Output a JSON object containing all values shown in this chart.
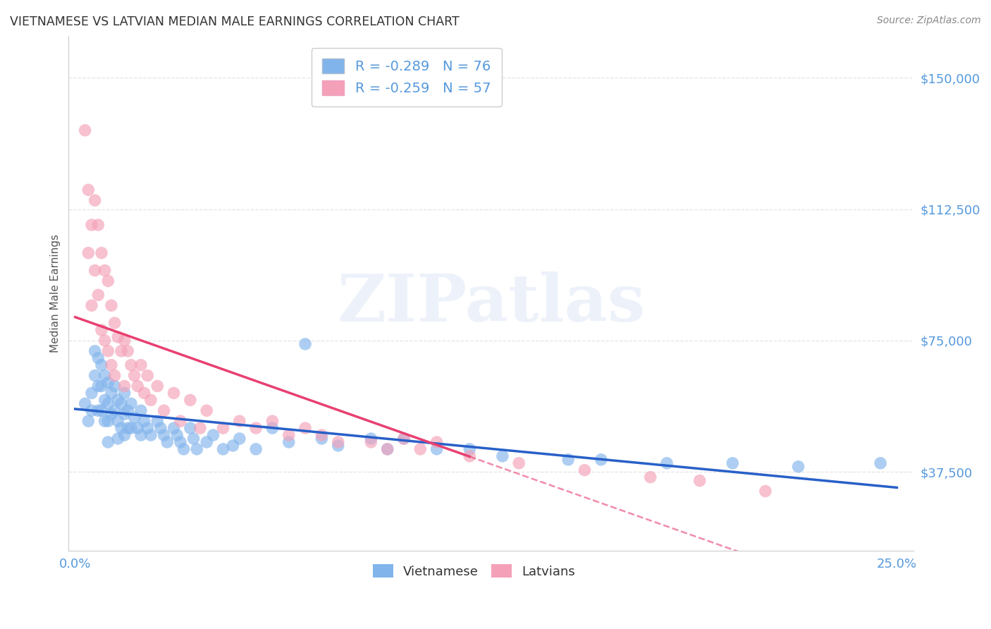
{
  "title": "VIETNAMESE VS LATVIAN MEDIAN MALE EARNINGS CORRELATION CHART",
  "source": "Source: ZipAtlas.com",
  "ylabel": "Median Male Earnings",
  "watermark": "ZIPatlas",
  "xlim": [
    -0.002,
    0.255
  ],
  "ylim": [
    15000,
    162000
  ],
  "xticks": [
    0.0,
    0.05,
    0.1,
    0.15,
    0.2,
    0.25
  ],
  "xticklabels": [
    "0.0%",
    "",
    "",
    "",
    "",
    "25.0%"
  ],
  "ytick_values": [
    37500,
    75000,
    112500,
    150000
  ],
  "ytick_labels": [
    "$37,500",
    "$75,000",
    "$112,500",
    "$150,000"
  ],
  "legend_viet": "R = -0.289   N = 76",
  "legend_latv": "R = -0.259   N = 57",
  "viet_color": "#82B4EC",
  "latv_color": "#F4A0B8",
  "viet_line_color": "#2860C8",
  "latv_line_color": "#E84070",
  "background_color": "#FFFFFF",
  "grid_color": "#DDDDDD",
  "title_color": "#333333",
  "axis_label_color": "#5599DD",
  "ylabel_color": "#555555",
  "viet_line_style": "solid",
  "latv_line_style": "solid",
  "latv_line_dashed_beyond": 0.12,
  "vietnamese_scatter": {
    "x": [
      0.003,
      0.004,
      0.005,
      0.005,
      0.006,
      0.006,
      0.007,
      0.007,
      0.007,
      0.008,
      0.008,
      0.008,
      0.009,
      0.009,
      0.009,
      0.01,
      0.01,
      0.01,
      0.01,
      0.011,
      0.011,
      0.012,
      0.012,
      0.013,
      0.013,
      0.013,
      0.014,
      0.014,
      0.015,
      0.015,
      0.015,
      0.016,
      0.016,
      0.017,
      0.017,
      0.018,
      0.019,
      0.02,
      0.02,
      0.021,
      0.022,
      0.023,
      0.025,
      0.026,
      0.027,
      0.028,
      0.03,
      0.031,
      0.032,
      0.033,
      0.035,
      0.036,
      0.037,
      0.04,
      0.042,
      0.045,
      0.048,
      0.05,
      0.055,
      0.06,
      0.065,
      0.07,
      0.075,
      0.08,
      0.09,
      0.095,
      0.1,
      0.11,
      0.12,
      0.13,
      0.15,
      0.16,
      0.18,
      0.2,
      0.22,
      0.245
    ],
    "y": [
      57000,
      52000,
      60000,
      55000,
      72000,
      65000,
      70000,
      62000,
      55000,
      68000,
      62000,
      55000,
      65000,
      58000,
      52000,
      63000,
      57000,
      52000,
      46000,
      60000,
      54000,
      62000,
      55000,
      58000,
      52000,
      47000,
      57000,
      50000,
      60000,
      54000,
      48000,
      55000,
      50000,
      57000,
      50000,
      53000,
      50000,
      55000,
      48000,
      52000,
      50000,
      48000,
      52000,
      50000,
      48000,
      46000,
      50000,
      48000,
      46000,
      44000,
      50000,
      47000,
      44000,
      46000,
      48000,
      44000,
      45000,
      47000,
      44000,
      50000,
      46000,
      74000,
      47000,
      45000,
      47000,
      44000,
      47000,
      44000,
      44000,
      42000,
      41000,
      41000,
      40000,
      40000,
      39000,
      40000
    ]
  },
  "latvian_scatter": {
    "x": [
      0.003,
      0.004,
      0.004,
      0.005,
      0.005,
      0.006,
      0.006,
      0.007,
      0.007,
      0.008,
      0.008,
      0.009,
      0.009,
      0.01,
      0.01,
      0.011,
      0.011,
      0.012,
      0.012,
      0.013,
      0.014,
      0.015,
      0.015,
      0.016,
      0.017,
      0.018,
      0.019,
      0.02,
      0.021,
      0.022,
      0.023,
      0.025,
      0.027,
      0.03,
      0.032,
      0.035,
      0.038,
      0.04,
      0.045,
      0.05,
      0.055,
      0.06,
      0.065,
      0.07,
      0.075,
      0.08,
      0.09,
      0.095,
      0.1,
      0.105,
      0.11,
      0.12,
      0.135,
      0.155,
      0.175,
      0.19,
      0.21
    ],
    "y": [
      135000,
      118000,
      100000,
      108000,
      85000,
      115000,
      95000,
      108000,
      88000,
      100000,
      78000,
      95000,
      75000,
      92000,
      72000,
      85000,
      68000,
      80000,
      65000,
      76000,
      72000,
      75000,
      62000,
      72000,
      68000,
      65000,
      62000,
      68000,
      60000,
      65000,
      58000,
      62000,
      55000,
      60000,
      52000,
      58000,
      50000,
      55000,
      50000,
      52000,
      50000,
      52000,
      48000,
      50000,
      48000,
      46000,
      46000,
      44000,
      47000,
      44000,
      46000,
      42000,
      40000,
      38000,
      36000,
      35000,
      32000
    ]
  }
}
